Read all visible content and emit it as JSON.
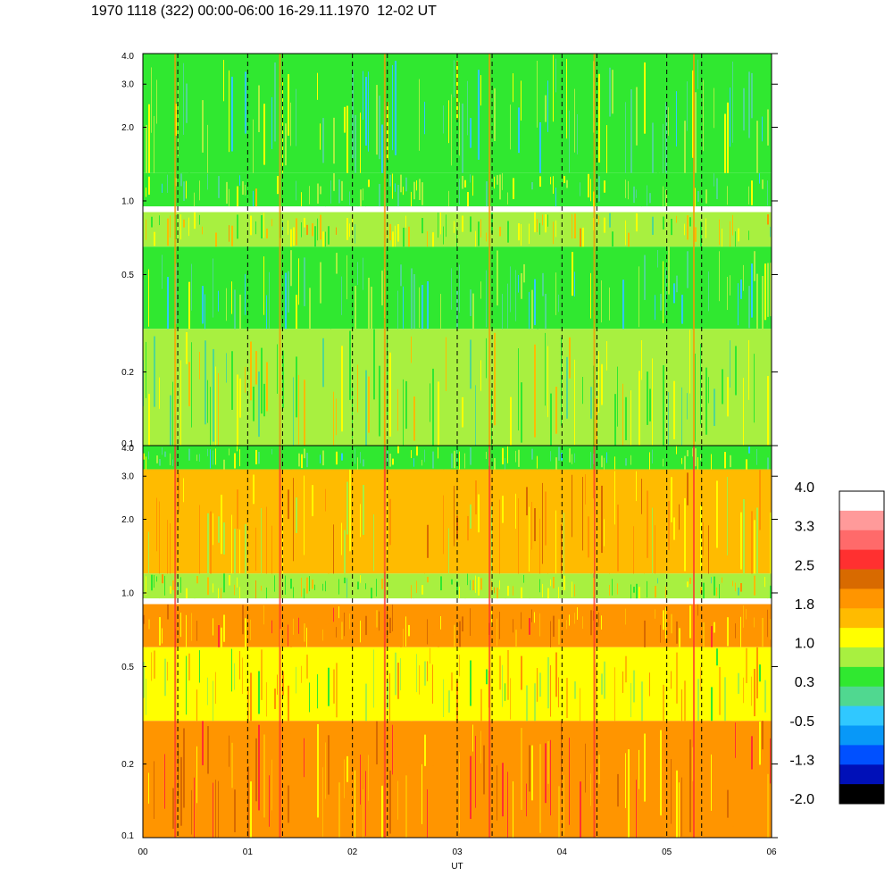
{
  "title": "1970 1118 (322) 00:00-06:00 16-29.11.1970  12-02 UT",
  "chart_data": [
    {
      "type": "heatmap",
      "panel": "top",
      "x_ticks": [
        "00",
        "01",
        "02",
        "03",
        "04",
        "05",
        "06"
      ],
      "x_range": [
        0,
        6
      ],
      "y_ticks": [
        {
          "label": "4.0",
          "value": 4.0
        },
        {
          "label": "3.0",
          "value": 3.0
        },
        {
          "label": "2.0",
          "value": 2.0
        },
        {
          "label": "1.0",
          "value": 1.0
        },
        {
          "label": "0.5",
          "value": 0.5
        },
        {
          "label": "0.2",
          "value": 0.2
        },
        {
          "label": "0.1",
          "value": 0.1
        }
      ],
      "y_range": [
        0.1,
        4.0
      ],
      "y_scale": "log",
      "dashed_gridlines_x": [
        0.333,
        1,
        1.333,
        2,
        2.333,
        3,
        3.333,
        4,
        4.333,
        5,
        5.333
      ],
      "bands": [
        {
          "y": [
            1.3,
            4.0
          ],
          "level": 0.5
        },
        {
          "y": [
            0.95,
            1.3
          ],
          "level": 0.6
        },
        {
          "y": [
            0.65,
            0.9
          ],
          "level": 1.0
        },
        {
          "y": [
            0.3,
            0.65
          ],
          "level": 0.3
        },
        {
          "y": [
            0.1,
            0.3
          ],
          "level": 0.8
        }
      ]
    },
    {
      "type": "heatmap",
      "panel": "bottom",
      "xlabel": "UT",
      "x_ticks": [
        "00",
        "01",
        "02",
        "03",
        "04",
        "05",
        "06"
      ],
      "x_range": [
        0,
        6
      ],
      "y_ticks": [
        {
          "label": "4.0",
          "value": 4.0
        },
        {
          "label": "3.0",
          "value": 3.0
        },
        {
          "label": "2.0",
          "value": 2.0
        },
        {
          "label": "1.0",
          "value": 1.0
        },
        {
          "label": "0.5",
          "value": 0.5
        },
        {
          "label": "0.2",
          "value": 0.2
        },
        {
          "label": "0.1",
          "value": 0.1
        }
      ],
      "y_range": [
        0.1,
        4.0
      ],
      "y_scale": "log",
      "dashed_gridlines_x": [
        0.333,
        1,
        1.333,
        2,
        2.333,
        3,
        3.333,
        4,
        4.333,
        5,
        5.333
      ],
      "bands": [
        {
          "y": [
            3.2,
            4.0
          ],
          "level": 0.6
        },
        {
          "y": [
            1.2,
            3.2
          ],
          "level": 1.5
        },
        {
          "y": [
            0.95,
            1.2
          ],
          "level": 1.0
        },
        {
          "y": [
            0.6,
            0.9
          ],
          "level": 1.8
        },
        {
          "y": [
            0.3,
            0.6
          ],
          "level": 1.3
        },
        {
          "y": [
            0.1,
            0.3
          ],
          "level": 1.9
        }
      ]
    }
  ],
  "colorbar": {
    "labels": [
      "4.0",
      "3.3",
      "2.5",
      "1.8",
      "1.0",
      "0.3",
      "-0.5",
      "-1.3",
      "-2.0"
    ],
    "colors": [
      "#ffffff",
      "#ff9a9a",
      "#ff6a6a",
      "#ff3030",
      "#d86a00",
      "#ff9500",
      "#ffbb00",
      "#ffff00",
      "#a8f040",
      "#30e830",
      "#50d890",
      "#30c8ff",
      "#0898f8",
      "#0050ff",
      "#0010b8",
      "#000000"
    ],
    "range": [
      -2.0,
      4.0
    ]
  }
}
